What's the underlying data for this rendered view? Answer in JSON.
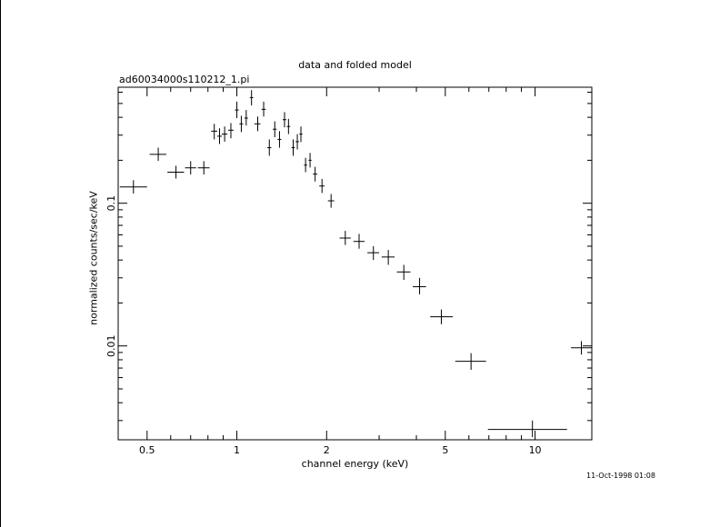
{
  "chart_data": {
    "type": "scatter",
    "title": "data and folded model",
    "subtitle": "ad60034000s110212_1.pi",
    "xlabel": "channel energy (keV)",
    "ylabel": "normalized counts/sec/keV",
    "x_scale": "log",
    "y_scale": "log",
    "xlim": [
      0.4,
      15.5
    ],
    "ylim": [
      0.0022,
      0.65
    ],
    "x_ticks": [
      {
        "value": 0.5,
        "label": "0.5"
      },
      {
        "value": 1,
        "label": "1"
      },
      {
        "value": 2,
        "label": "2"
      },
      {
        "value": 5,
        "label": "5"
      },
      {
        "value": 10,
        "label": "10"
      }
    ],
    "y_ticks": [
      {
        "value": 0.01,
        "label": "0.01"
      },
      {
        "value": 0.1,
        "label": "0.1"
      }
    ],
    "grid": false,
    "points": [
      {
        "x": 0.45,
        "xlo": 0.405,
        "xhi": 0.5,
        "y": 0.13,
        "ylo": 0.117,
        "yhi": 0.145
      },
      {
        "x": 0.545,
        "xlo": 0.51,
        "xhi": 0.58,
        "y": 0.22,
        "ylo": 0.198,
        "yhi": 0.245
      },
      {
        "x": 0.625,
        "xlo": 0.585,
        "xhi": 0.665,
        "y": 0.165,
        "ylo": 0.149,
        "yhi": 0.183
      },
      {
        "x": 0.7,
        "xlo": 0.67,
        "xhi": 0.73,
        "y": 0.177,
        "ylo": 0.159,
        "yhi": 0.197
      },
      {
        "x": 0.775,
        "xlo": 0.74,
        "xhi": 0.81,
        "y": 0.177,
        "ylo": 0.159,
        "yhi": 0.197
      },
      {
        "x": 0.84,
        "xlo": 0.82,
        "xhi": 0.86,
        "y": 0.32,
        "ylo": 0.28,
        "yhi": 0.36
      },
      {
        "x": 0.875,
        "xlo": 0.86,
        "xhi": 0.89,
        "y": 0.295,
        "ylo": 0.26,
        "yhi": 0.335
      },
      {
        "x": 0.91,
        "xlo": 0.89,
        "xhi": 0.93,
        "y": 0.305,
        "ylo": 0.27,
        "yhi": 0.345
      },
      {
        "x": 0.955,
        "xlo": 0.935,
        "xhi": 0.975,
        "y": 0.325,
        "ylo": 0.285,
        "yhi": 0.365
      },
      {
        "x": 1.0,
        "xlo": 0.985,
        "xhi": 1.015,
        "y": 0.45,
        "ylo": 0.395,
        "yhi": 0.515
      },
      {
        "x": 1.035,
        "xlo": 1.02,
        "xhi": 1.05,
        "y": 0.36,
        "ylo": 0.315,
        "yhi": 0.41
      },
      {
        "x": 1.075,
        "xlo": 1.06,
        "xhi": 1.09,
        "y": 0.395,
        "ylo": 0.35,
        "yhi": 0.45
      },
      {
        "x": 1.12,
        "xlo": 1.105,
        "xhi": 1.135,
        "y": 0.55,
        "ylo": 0.485,
        "yhi": 0.62
      },
      {
        "x": 1.175,
        "xlo": 1.145,
        "xhi": 1.2,
        "y": 0.36,
        "ylo": 0.32,
        "yhi": 0.405
      },
      {
        "x": 1.23,
        "xlo": 1.21,
        "xhi": 1.25,
        "y": 0.455,
        "ylo": 0.405,
        "yhi": 0.515
      },
      {
        "x": 1.285,
        "xlo": 1.265,
        "xhi": 1.305,
        "y": 0.245,
        "ylo": 0.215,
        "yhi": 0.28
      },
      {
        "x": 1.34,
        "xlo": 1.32,
        "xhi": 1.36,
        "y": 0.33,
        "ylo": 0.29,
        "yhi": 0.375
      },
      {
        "x": 1.39,
        "xlo": 1.37,
        "xhi": 1.41,
        "y": 0.28,
        "ylo": 0.245,
        "yhi": 0.32
      },
      {
        "x": 1.445,
        "xlo": 1.425,
        "xhi": 1.465,
        "y": 0.385,
        "ylo": 0.34,
        "yhi": 0.435
      },
      {
        "x": 1.49,
        "xlo": 1.47,
        "xhi": 1.51,
        "y": 0.345,
        "ylo": 0.305,
        "yhi": 0.39
      },
      {
        "x": 1.545,
        "xlo": 1.525,
        "xhi": 1.565,
        "y": 0.245,
        "ylo": 0.215,
        "yhi": 0.28
      },
      {
        "x": 1.595,
        "xlo": 1.575,
        "xhi": 1.615,
        "y": 0.27,
        "ylo": 0.238,
        "yhi": 0.305
      },
      {
        "x": 1.64,
        "xlo": 1.62,
        "xhi": 1.66,
        "y": 0.305,
        "ylo": 0.268,
        "yhi": 0.345
      },
      {
        "x": 1.7,
        "xlo": 1.68,
        "xhi": 1.72,
        "y": 0.185,
        "ylo": 0.165,
        "yhi": 0.208
      },
      {
        "x": 1.76,
        "xlo": 1.74,
        "xhi": 1.78,
        "y": 0.2,
        "ylo": 0.178,
        "yhi": 0.225
      },
      {
        "x": 1.83,
        "xlo": 1.8,
        "xhi": 1.86,
        "y": 0.16,
        "ylo": 0.142,
        "yhi": 0.18
      },
      {
        "x": 1.93,
        "xlo": 1.89,
        "xhi": 1.97,
        "y": 0.132,
        "ylo": 0.118,
        "yhi": 0.148
      },
      {
        "x": 2.07,
        "xlo": 2.02,
        "xhi": 2.12,
        "y": 0.104,
        "ylo": 0.093,
        "yhi": 0.116
      },
      {
        "x": 2.31,
        "xlo": 2.21,
        "xhi": 2.41,
        "y": 0.057,
        "ylo": 0.051,
        "yhi": 0.064
      },
      {
        "x": 2.57,
        "xlo": 2.46,
        "xhi": 2.68,
        "y": 0.054,
        "ylo": 0.048,
        "yhi": 0.061
      },
      {
        "x": 2.87,
        "xlo": 2.74,
        "xhi": 3.0,
        "y": 0.045,
        "ylo": 0.04,
        "yhi": 0.05
      },
      {
        "x": 3.22,
        "xlo": 3.06,
        "xhi": 3.38,
        "y": 0.042,
        "ylo": 0.037,
        "yhi": 0.047
      },
      {
        "x": 3.63,
        "xlo": 3.44,
        "xhi": 3.82,
        "y": 0.033,
        "ylo": 0.029,
        "yhi": 0.037
      },
      {
        "x": 4.1,
        "xlo": 3.89,
        "xhi": 4.31,
        "y": 0.026,
        "ylo": 0.023,
        "yhi": 0.03
      },
      {
        "x": 4.85,
        "xlo": 4.45,
        "xhi": 5.3,
        "y": 0.016,
        "ylo": 0.0142,
        "yhi": 0.018
      },
      {
        "x": 6.1,
        "xlo": 5.4,
        "xhi": 6.85,
        "y": 0.0078,
        "ylo": 0.0068,
        "yhi": 0.0089
      },
      {
        "x": 9.8,
        "xlo": 6.95,
        "xhi": 12.8,
        "y": 0.0026,
        "ylo": 0.0023,
        "yhi": 0.003
      },
      {
        "x": 14.3,
        "xlo": 13.2,
        "xhi": 15.5,
        "y": 0.0097,
        "ylo": 0.0087,
        "yhi": 0.0108
      }
    ]
  },
  "timestamp": "11-Oct-1998 01:08"
}
